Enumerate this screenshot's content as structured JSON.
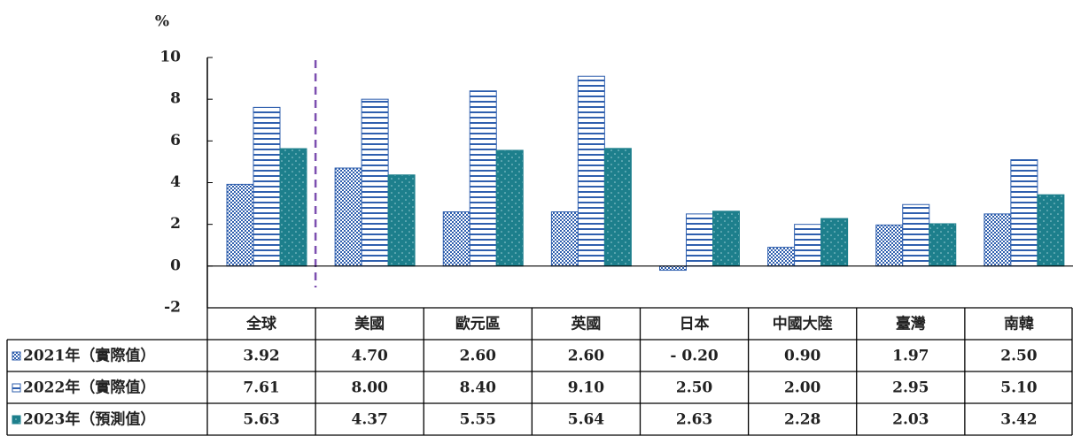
{
  "chart_data": {
    "type": "bar",
    "y_label": "%",
    "categories": [
      "全球",
      "美國",
      "歐元區",
      "英國",
      "日本",
      "中國大陸",
      "臺灣",
      "南韓"
    ],
    "series": [
      {
        "name": "2021年（實際值）",
        "color": "#2f5fae",
        "pattern": "checker",
        "values": [
          3.92,
          4.7,
          2.6,
          2.6,
          -0.2,
          0.9,
          1.97,
          2.5
        ],
        "value_labels": [
          "3.92",
          "4.70",
          "2.60",
          "2.60",
          "- 0.20",
          "0.90",
          "1.97",
          "2.50"
        ]
      },
      {
        "name": "2022年（實際值）",
        "color": "#2f5fae",
        "pattern": "hstripe",
        "values": [
          7.61,
          8.0,
          8.4,
          9.1,
          2.5,
          2.0,
          2.95,
          5.1
        ],
        "value_labels": [
          "7.61",
          "8.00",
          "8.40",
          "9.10",
          "2.50",
          "2.00",
          "2.95",
          "5.10"
        ]
      },
      {
        "name": "2023年（預測值）",
        "color": "#1d7f8c",
        "pattern": "dots",
        "values": [
          5.63,
          4.37,
          5.55,
          5.64,
          2.63,
          2.28,
          2.03,
          3.42
        ],
        "value_labels": [
          "5.63",
          "4.37",
          "5.55",
          "5.64",
          "2.63",
          "2.28",
          "2.03",
          "3.42"
        ]
      }
    ],
    "ylim": [
      -2,
      10
    ],
    "yticks": [
      10,
      8,
      6,
      4,
      2,
      0,
      -2
    ],
    "grid": false,
    "divider_after_category": 0,
    "divider_color": "#7d4fb0"
  }
}
